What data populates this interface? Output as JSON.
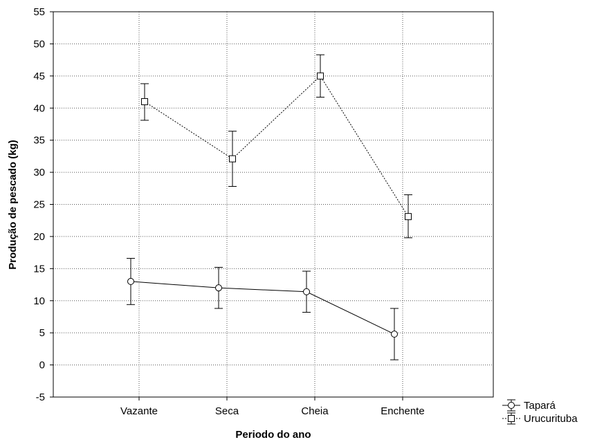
{
  "chart_data": {
    "type": "line",
    "title": "",
    "xlabel": "Periodo do ano",
    "ylabel": "Produção de pescado (kg)",
    "categories": [
      "Vazante",
      "Seca",
      "Cheia",
      "Enchente"
    ],
    "ylim": [
      -5,
      55
    ],
    "yticks": [
      -5,
      0,
      5,
      10,
      15,
      20,
      25,
      30,
      35,
      40,
      45,
      50,
      55
    ],
    "grid": true,
    "legend_position": "bottom-right",
    "series": [
      {
        "name": "Tapará",
        "marker": "circle",
        "line_style": "solid",
        "values": [
          13,
          12,
          11.4,
          4.8
        ],
        "error_low": [
          9.4,
          8.8,
          8.2,
          0.8
        ],
        "error_high": [
          16.6,
          15.2,
          14.6,
          8.8
        ]
      },
      {
        "name": "Urucurituba",
        "marker": "square",
        "line_style": "dotted",
        "values": [
          41,
          32.1,
          45,
          23.1
        ],
        "error_low": [
          38.1,
          27.8,
          41.7,
          19.8
        ],
        "error_high": [
          43.8,
          36.4,
          48.3,
          26.5
        ]
      }
    ]
  }
}
